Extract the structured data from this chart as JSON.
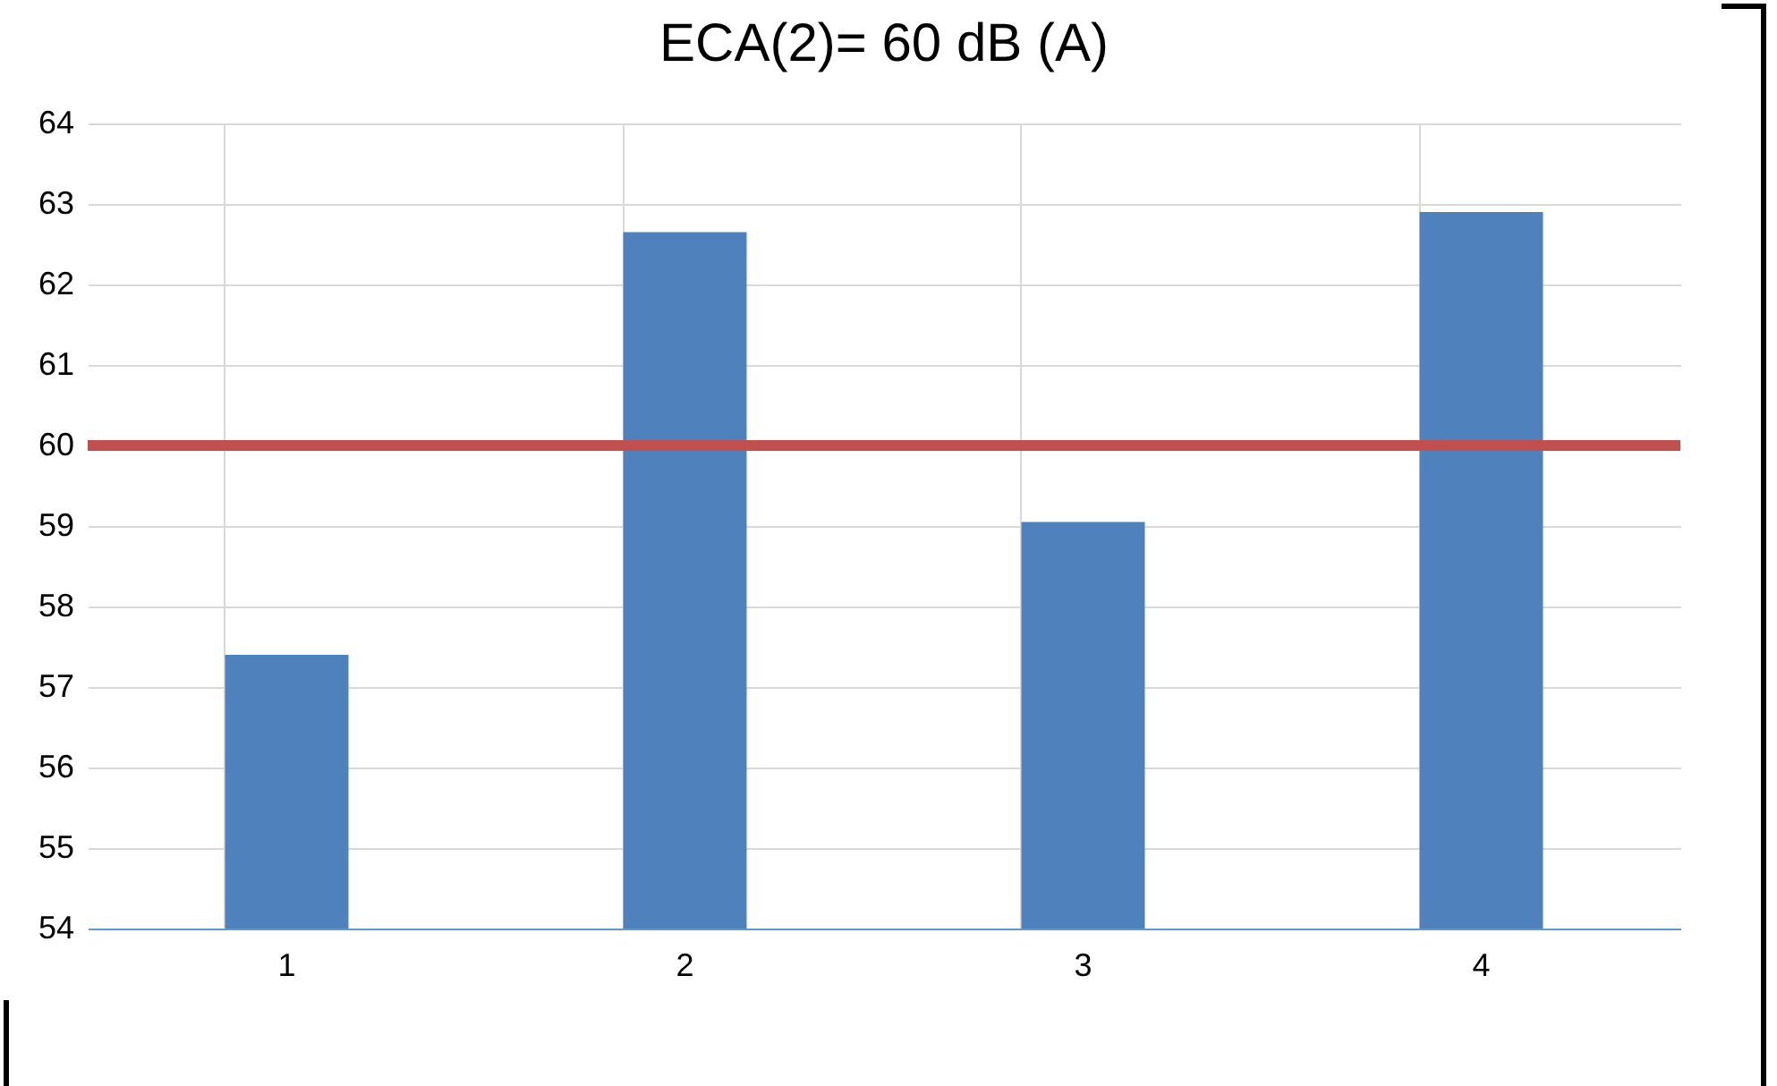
{
  "chart_data": {
    "type": "bar",
    "title": "ECA(2)= 60 dB (A)",
    "categories": [
      "1",
      "2",
      "3",
      "4"
    ],
    "values": [
      57.4,
      62.65,
      59.05,
      62.9
    ],
    "color": "#4f81bd",
    "ylim": [
      54,
      64
    ],
    "yticks": [
      54,
      55,
      56,
      57,
      58,
      59,
      60,
      61,
      62,
      63,
      64
    ],
    "grid": true,
    "ref_lines": [
      {
        "axis": "y",
        "value": 60,
        "color": "#c0504d"
      }
    ]
  }
}
